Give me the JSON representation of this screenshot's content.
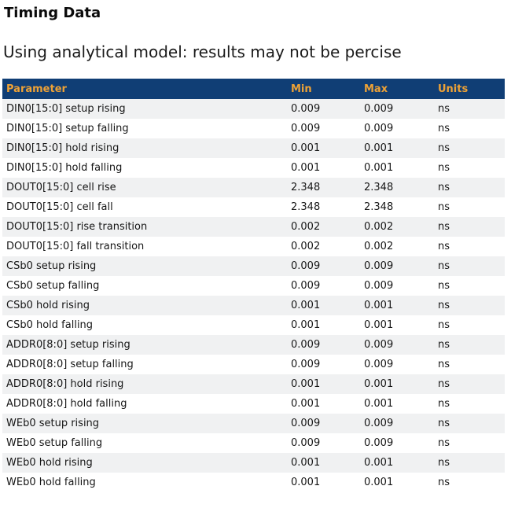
{
  "page": {
    "title": "Timing Data",
    "subtitle": "Using analytical model: results may not be percise"
  },
  "colors": {
    "header_bg": "#103E75",
    "header_text": "#EEA236",
    "row_alt_bg": "#F0F1F2",
    "row_bg": "#FFFFFF"
  },
  "table": {
    "columns": [
      "Parameter",
      "Min",
      "Max",
      "Units"
    ],
    "rows": [
      {
        "param": "DIN0[15:0] setup rising",
        "min": "0.009",
        "max": "0.009",
        "units": "ns"
      },
      {
        "param": "DIN0[15:0] setup falling",
        "min": "0.009",
        "max": "0.009",
        "units": "ns"
      },
      {
        "param": "DIN0[15:0] hold rising",
        "min": "0.001",
        "max": "0.001",
        "units": "ns"
      },
      {
        "param": "DIN0[15:0] hold falling",
        "min": "0.001",
        "max": "0.001",
        "units": "ns"
      },
      {
        "param": "DOUT0[15:0] cell rise",
        "min": "2.348",
        "max": "2.348",
        "units": "ns"
      },
      {
        "param": "DOUT0[15:0] cell fall",
        "min": "2.348",
        "max": "2.348",
        "units": "ns"
      },
      {
        "param": "DOUT0[15:0] rise transition",
        "min": "0.002",
        "max": "0.002",
        "units": "ns"
      },
      {
        "param": "DOUT0[15:0] fall transition",
        "min": "0.002",
        "max": "0.002",
        "units": "ns"
      },
      {
        "param": "CSb0 setup rising",
        "min": "0.009",
        "max": "0.009",
        "units": "ns"
      },
      {
        "param": "CSb0 setup falling",
        "min": "0.009",
        "max": "0.009",
        "units": "ns"
      },
      {
        "param": "CSb0 hold rising",
        "min": "0.001",
        "max": "0.001",
        "units": "ns"
      },
      {
        "param": "CSb0 hold falling",
        "min": "0.001",
        "max": "0.001",
        "units": "ns"
      },
      {
        "param": "ADDR0[8:0] setup rising",
        "min": "0.009",
        "max": "0.009",
        "units": "ns"
      },
      {
        "param": "ADDR0[8:0] setup falling",
        "min": "0.009",
        "max": "0.009",
        "units": "ns"
      },
      {
        "param": "ADDR0[8:0] hold rising",
        "min": "0.001",
        "max": "0.001",
        "units": "ns"
      },
      {
        "param": "ADDR0[8:0] hold falling",
        "min": "0.001",
        "max": "0.001",
        "units": "ns"
      },
      {
        "param": "WEb0 setup rising",
        "min": "0.009",
        "max": "0.009",
        "units": "ns"
      },
      {
        "param": "WEb0 setup falling",
        "min": "0.009",
        "max": "0.009",
        "units": "ns"
      },
      {
        "param": "WEb0 hold rising",
        "min": "0.001",
        "max": "0.001",
        "units": "ns"
      },
      {
        "param": "WEb0 hold falling",
        "min": "0.001",
        "max": "0.001",
        "units": "ns"
      }
    ]
  }
}
